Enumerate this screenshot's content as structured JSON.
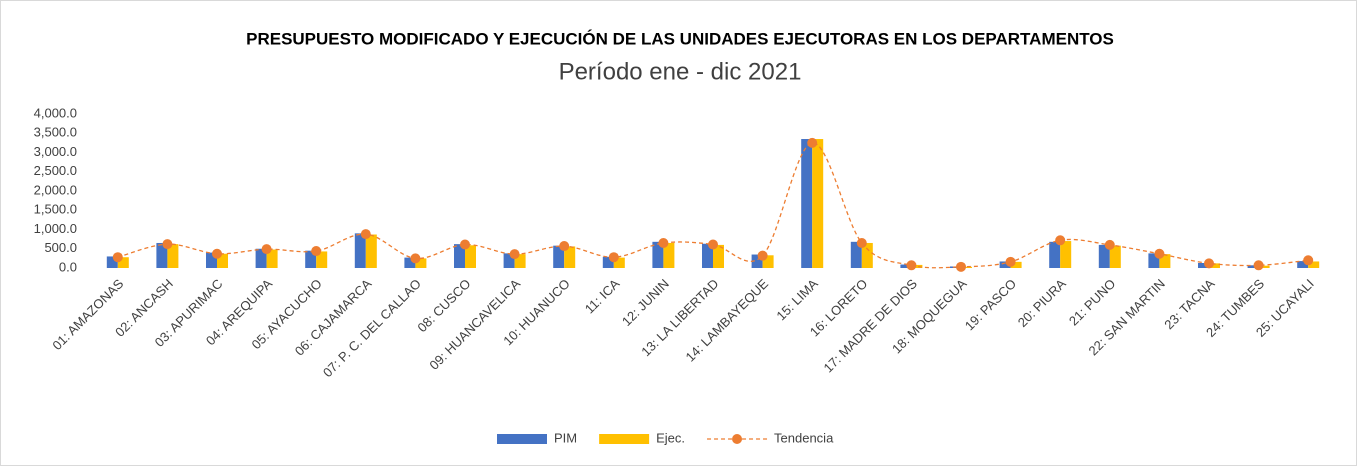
{
  "chart_data": {
    "type": "bar",
    "title": "PRESUPUESTO MODIFICADO Y EJECUCIÓN DE LAS UNIDADES EJECUTORAS EN LOS DEPARTAMENTOS",
    "subtitle": "Período ene - dic 2021",
    "categories": [
      "01: AMAZONAS",
      "02: ANCASH",
      "03: APURIMAC",
      "04: AREQUIPA",
      "05: AYACUCHO",
      "06: CAJAMARCA",
      "07: P. C. DEL CALLAO",
      "08: CUSCO",
      "09: HUANCAVELICA",
      "10: HUANUCO",
      "11: ICA",
      "12: JUNIN",
      "13: LA LIBERTAD",
      "14: LAMBAYEQUE",
      "15: LIMA",
      "16: LORETO",
      "17: MADRE DE DIOS",
      "18: MOQUEGUA",
      "19: PASCO",
      "20: PIURA",
      "21: PUNO",
      "22: SAN MARTIN",
      "23: TACNA",
      "24: TUMBES",
      "25: UCAYALI"
    ],
    "series": [
      {
        "name": "PIM",
        "color": "#4472c4",
        "kind": "bar",
        "values": [
          300,
          650,
          400,
          500,
          450,
          900,
          270,
          620,
          380,
          580,
          290,
          680,
          630,
          350,
          3350,
          680,
          90,
          40,
          170,
          680,
          600,
          380,
          130,
          70,
          180
        ]
      },
      {
        "name": "Ejec.",
        "color": "#ffc000",
        "kind": "bar",
        "values": [
          280,
          620,
          370,
          480,
          430,
          870,
          250,
          590,
          360,
          560,
          270,
          650,
          600,
          330,
          3350,
          650,
          80,
          30,
          160,
          700,
          580,
          360,
          120,
          60,
          170
        ]
      },
      {
        "name": "Tendencia",
        "color": "#ed7d31",
        "kind": "line",
        "values": [
          280,
          620,
          370,
          490,
          440,
          880,
          250,
          610,
          360,
          570,
          280,
          650,
          610,
          320,
          3250,
          650,
          70,
          30,
          160,
          720,
          600,
          370,
          120,
          70,
          200
        ]
      }
    ],
    "ylim": [
      0,
      4000
    ],
    "yticks": [
      {
        "value": 0,
        "label": "0.0"
      },
      {
        "value": 500,
        "label": "500.0"
      },
      {
        "value": 1000,
        "label": "1,000.0"
      },
      {
        "value": 1500,
        "label": "1,500.0"
      },
      {
        "value": 2000,
        "label": "2,000.0"
      },
      {
        "value": 2500,
        "label": "2,500.0"
      },
      {
        "value": 3000,
        "label": "3,000.0"
      },
      {
        "value": 3500,
        "label": "3,500.0"
      },
      {
        "value": 4000,
        "label": "4,000.0"
      }
    ],
    "grid": false,
    "legend": "bottom"
  }
}
